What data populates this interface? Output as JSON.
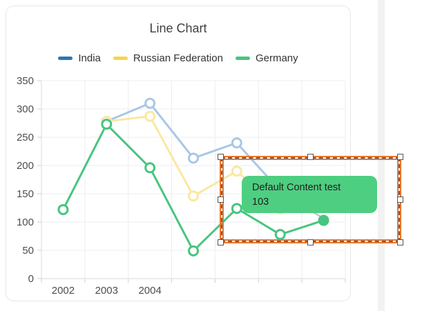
{
  "chart_data": {
    "type": "line",
    "title": "Line Chart",
    "x_labels_visible": [
      "2002",
      "2003",
      "2004"
    ],
    "num_x_slots": 7,
    "ylim": [
      0,
      350
    ],
    "y_tick_step": 50,
    "grid": true,
    "legend_position": "top",
    "series": [
      {
        "name": "India",
        "legend_color": "#2878b4",
        "line_color": "#a9c7e6",
        "values": [
          null,
          278,
          310,
          213,
          240,
          155,
          null
        ]
      },
      {
        "name": "Russian Federation",
        "legend_color": "#f6d44d",
        "line_color": "#fae8a2",
        "values": [
          null,
          278,
          287,
          146,
          190,
          123,
          null
        ]
      },
      {
        "name": "Germany",
        "legend_color": "#47c57f",
        "line_color": "#47c57f",
        "values": [
          122,
          273,
          196,
          49,
          124,
          78,
          103
        ],
        "last_point_filled": true
      }
    ]
  },
  "annotation": {
    "line1": "Default Content test",
    "line2": "103",
    "bg_color": "#4ece80",
    "text_color": "#1f1f1f"
  },
  "selection": {
    "border_color": "#e8762c",
    "dash_color": "#51627c"
  },
  "scrollbar": {
    "color": "#f2f2f2"
  }
}
